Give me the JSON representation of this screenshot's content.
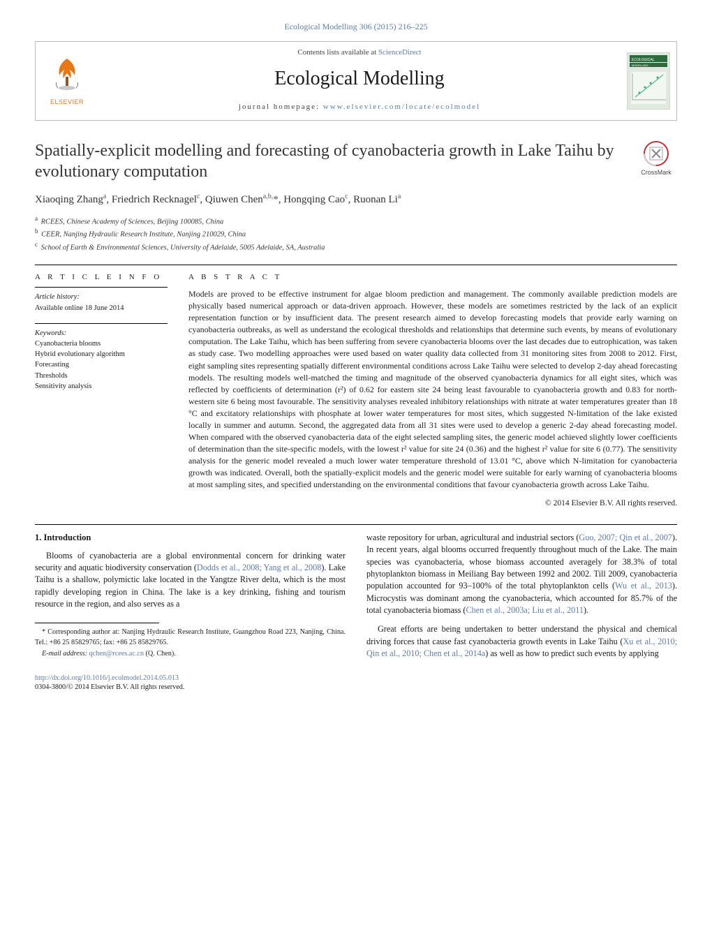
{
  "journal_ref": "Ecological Modelling 306 (2015) 216–225",
  "header": {
    "contents_prefix": "Contents lists available at ",
    "contents_link": "ScienceDirect",
    "journal_name": "Ecological Modelling",
    "homepage_prefix": "journal homepage: ",
    "homepage_link": "www.elsevier.com/locate/ecolmodel",
    "elsevier_word": "ELSEVIER",
    "elsevier_logo_color": "#e67817",
    "cover_title_color": "#2d6a3e",
    "cover_bg": "#dfe9df"
  },
  "crossmark_label": "CrossMark",
  "title": "Spatially-explicit modelling and forecasting of cyanobacteria growth in Lake Taihu by evolutionary computation",
  "authors_html": "Xiaoqing Zhang<sup>a</sup>, Friedrich Recknagel<sup>c</sup>, Qiuwen Chen<sup>a,b,</sup>*, Hongqing Cao<sup>c</sup>, Ruonan Li<sup>a</sup>",
  "authors": [
    {
      "name": "Xiaoqing Zhang",
      "aff": "a"
    },
    {
      "name": "Friedrich Recknagel",
      "aff": "c"
    },
    {
      "name": "Qiuwen Chen",
      "aff": "a,b,",
      "corr": true
    },
    {
      "name": "Hongqing Cao",
      "aff": "c"
    },
    {
      "name": "Ruonan Li",
      "aff": "a"
    }
  ],
  "affiliations": [
    {
      "sym": "a",
      "text": "RCEES, Chinese Academy of Sciences, Beijing 100085, China"
    },
    {
      "sym": "b",
      "text": "CEER, Nanjing Hydraulic Research Institute, Nanjing 210029, China"
    },
    {
      "sym": "c",
      "text": "School of Earth & Environmental Sciences, University of Adelaide, 5005 Adelaide, SA, Australia"
    }
  ],
  "article_info": {
    "head": "A R T I C L E   I N F O",
    "history_label": "Article history:",
    "history_line": "Available online 18 June 2014",
    "keywords_label": "Keywords:",
    "keywords": [
      "Cyanobacteria blooms",
      "Hybrid evolutionary algorithm",
      "Forecasting",
      "Thresholds",
      "Sensitivity analysis"
    ]
  },
  "abstract": {
    "head": "A B S T R A C T",
    "text": "Models are proved to be effective instrument for algae bloom prediction and management. The commonly available prediction models are physically based numerical approach or data-driven approach. However, these models are sometimes restricted by the lack of an explicit representation function or by insufficient data. The present research aimed to develop forecasting models that provide early warning on cyanobacteria outbreaks, as well as understand the ecological thresholds and relationships that determine such events, by means of evolutionary computation. The Lake Taihu, which has been suffering from severe cyanobacteria blooms over the last decades due to eutrophication, was taken as study case. Two modelling approaches were used based on water quality data collected from 31 monitoring sites from 2008 to 2012. First, eight sampling sites representing spatially different environmental conditions across Lake Taihu were selected to develop 2-day ahead forecasting models. The resulting models well-matched the timing and magnitude of the observed cyanobacteria dynamics for all eight sites, which was reflected by coefficients of determination (r²) of 0.62 for eastern site 24 being least favourable to cyanobacteria growth and 0.83 for north-western site 6 being most favourable. The sensitivity analyses revealed inhibitory relationships with nitrate at water temperatures greater than 18 °C and excitatory relationships with phosphate at lower water temperatures for most sites, which suggested N-limitation of the lake existed locally in summer and autumn. Second, the aggregated data from all 31 sites were used to develop a generic 2-day ahead forecasting model. When compared with the observed cyanobacteria data of the eight selected sampling sites, the generic model achieved slightly lower coefficients of determination than the site-specific models, with the lowest r² value for site 24 (0.36) and the highest r² value for site 6 (0.77). The sensitivity analysis for the generic model revealed a much lower water temperature threshold of 13.01 °C, above which N-limitation for cyanobacteria growth was indicated. Overall, both the spatially-explicit models and the generic model were suitable for early warning of cyanobacteria blooms at most sampling sites, and specified understanding on the environmental conditions that favour cyanobacteria growth across Lake Taihu.",
    "copyright": "© 2014 Elsevier B.V. All rights reserved."
  },
  "body": {
    "section_number": "1.",
    "section_title": "Introduction",
    "para1_pre": "Blooms of cyanobacteria are a global environmental concern for drinking water security and aquatic biodiversity conservation (",
    "para1_link": "Dodds et al., 2008; Yang et al., 2008",
    "para1_post": "). Lake Taihu is a shallow, polymictic lake located in the Yangtze River delta, which is the most rapidly developing region in China. The lake is a key drinking, fishing and tourism resource in the region, and also serves as a",
    "para2_pre": "waste repository for urban, agricultural and industrial sectors (",
    "para2_link1": "Guo, 2007; Qin et al., 2007",
    "para2_mid1": "). In recent years, algal blooms occurred frequently throughout much of the Lake. The main species was cyanobacteria, whose biomass accounted averagely for 38.3% of total phytoplankton biomass in Meiliang Bay between 1992 and 2002. Till 2009, cyanobacteria population accounted for 93–100% of the total phytoplankton cells (",
    "para2_link2": "Wu et al., 2013",
    "para2_mid2": "). Microcystis was dominant among the cyanobacteria, which accounted for 85.7% of the total cyanobacteria biomass (",
    "para2_link3": "Chen et al., 2003a; Liu et al., 2011",
    "para2_post": ").",
    "para3_pre": "Great efforts are being undertaken to better understand the physical and chemical driving forces that cause fast cyanobacteria growth events in Lake Taihu (",
    "para3_link": "Xu et al., 2010; Qin et al., 2010; Chen et al., 2014a",
    "para3_post": ") as well as how to predict such events by applying"
  },
  "footnotes": {
    "corr_pre": "* Corresponding author at: Nanjing Hydraulic Research Institute, Guangzhou Road 223, Nanjing, China. Tel.: +86 25 85829765; fax: +86 25 85829765.",
    "email_label": "E-mail address: ",
    "email": "qchen@rcees.ac.cn",
    "email_post": " (Q. Chen)."
  },
  "footer": {
    "doi": "http://dx.doi.org/10.1016/j.ecolmodel.2014.05.013",
    "issn_line": "0304-3800/© 2014 Elsevier B.V. All rights reserved."
  },
  "colors": {
    "link": "#5e7ca8",
    "text": "#1a1a1a",
    "rule": "#000000"
  }
}
